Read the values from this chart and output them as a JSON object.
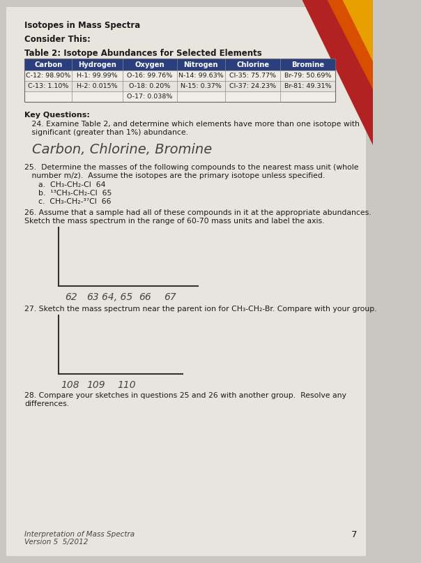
{
  "bg_color": "#cac6c0",
  "page_bg": "#e8e5df",
  "title1": "Isotopes in Mass Spectra",
  "title2": "Consider This:",
  "table_title": "Table 2: Isotope Abundances for Selected Elements",
  "table_headers": [
    "Carbon",
    "Hydrogen",
    "Oxygen",
    "Nitrogen",
    "Chlorine",
    "Bromine"
  ],
  "table_header_bg": "#2b3f7e",
  "table_header_color": "#ffffff",
  "table_data": [
    [
      "C-12: 98.90%",
      "H-1: 99.99%",
      "O-16: 99.76%",
      "N-14: 99.63%",
      "Cl-35: 75.77%",
      "Br-79: 50.69%"
    ],
    [
      "C-13: 1.10%",
      "H-2: 0.015%",
      "O-18: 0.20%",
      "N-15: 0.37%",
      "Cl-37: 24.23%",
      "Br-81: 49.31%"
    ],
    [
      "",
      "",
      "O-17: 0.038%",
      "",
      "",
      ""
    ]
  ],
  "kq_bold": "Key Questions:",
  "q24_line1": "   24. Examine Table 2, and determine which elements have more than one isotope with",
  "q24_line2": "   significant (greater than 1%) abundance.",
  "q24_answer": "Carbon, Chlorine, Bromine",
  "q25_line1": "25.  Determine the masses of the following compounds to the nearest mass unit (whole",
  "q25_line2": "   number m/z).  Assume the isotopes are the primary isotope unless specified.",
  "q25a": "a.  CH₃-CH₂-Cl  64",
  "q25b": "b.  ¹³CH₃-CH₂-Cl  65",
  "q25c": "c.  CH₃-CH₂-³⁷Cl  66",
  "q26_line1": "26. Assume that a sample had all of these compounds in it at the appropriate abundances.",
  "q26_line2": "Sketch the mass spectrum in the range of 60-70 mass units and label the axis.",
  "q26_xlabels": [
    "62",
    "63",
    "64, 65",
    "66",
    "67"
  ],
  "q27_text": "27. Sketch the mass spectrum near the parent ion for CH₃-CH₂-Br. Compare with your group.",
  "q27_xlabels": [
    "108",
    "109",
    "110"
  ],
  "q28_line1": "28. Compare your sketches in questions 25 and 26 with another group.  Resolve any",
  "q28_line2": "differences.",
  "footer_italic": "Interpretation of Mass Spectra",
  "footer_version": "Version 5  5/2012",
  "page_num": "7",
  "text_color": "#1a1a1a",
  "axis_color": "#333333",
  "handwritten_color": "#444444"
}
